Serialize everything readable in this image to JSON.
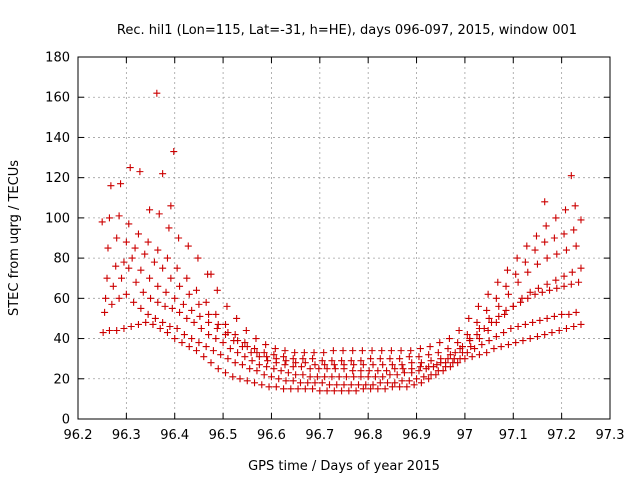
{
  "chart_data": {
    "type": "scatter",
    "title": "Rec. hil1 (Lon=115, Lat=-31, h=HE), days 096-097, 2015, window 001",
    "xlabel": "GPS time / Days of year 2015",
    "ylabel": "STEC from uqrg / TECUs",
    "xlim": [
      96.2,
      97.3
    ],
    "ylim": [
      0,
      180
    ],
    "xticks": [
      96.2,
      96.3,
      96.4,
      96.5,
      96.6,
      96.7,
      96.8,
      96.9,
      97.0,
      97.1,
      97.2,
      97.3
    ],
    "xtick_labels": [
      "96.2",
      "96.3",
      "96.4",
      "96.5",
      "96.6",
      "96.7",
      "96.8",
      "96.9",
      "97",
      "97.1",
      "97.2",
      "97.3"
    ],
    "yticks": [
      0,
      20,
      40,
      60,
      80,
      100,
      120,
      140,
      160,
      180
    ],
    "ytick_labels": [
      "0",
      "20",
      "40",
      "60",
      "80",
      "100",
      "120",
      "140",
      "160",
      "180"
    ],
    "grid": true,
    "legend": "none",
    "marker": "plus",
    "color": "#cc0000",
    "series": [
      {
        "x": [
          96.252,
          96.265,
          96.28,
          96.295,
          96.31,
          96.325,
          96.34,
          96.355,
          96.37,
          96.385,
          96.4,
          96.415,
          96.43,
          96.445,
          96.46,
          96.475,
          96.49,
          96.505,
          96.52,
          96.535,
          96.55,
          96.565,
          96.58,
          96.595,
          96.61,
          96.625,
          96.64,
          96.655,
          96.67,
          96.685,
          96.7,
          96.715,
          96.73,
          96.745,
          96.76,
          96.775,
          96.79,
          96.805,
          96.82,
          96.835,
          96.85,
          96.865,
          96.88,
          96.895,
          96.91,
          96.925,
          96.94,
          96.955,
          96.97,
          96.985,
          97.0,
          97.015,
          97.03,
          97.045,
          97.06,
          97.075,
          97.09,
          97.105,
          97.12,
          97.135,
          97.15,
          97.165,
          97.18,
          97.195,
          97.21,
          97.225,
          97.24
        ],
        "y": [
          43,
          44,
          44,
          45,
          46,
          47,
          48,
          47,
          45,
          43,
          40,
          38,
          36,
          34,
          31,
          28,
          25,
          23,
          21,
          20,
          19,
          18,
          17,
          16,
          16,
          15,
          15,
          15,
          15,
          15,
          14,
          14,
          14,
          14,
          14,
          14,
          15,
          15,
          15,
          15,
          16,
          16,
          16,
          17,
          18,
          20,
          22,
          24,
          26,
          28,
          30,
          31,
          32,
          33,
          35,
          36,
          37,
          38,
          39,
          40,
          41,
          42,
          43,
          44,
          45,
          46,
          47
        ]
      },
      {
        "x": [
          96.255,
          96.27,
          96.285,
          96.3,
          96.315,
          96.33,
          96.345,
          96.36,
          96.375,
          96.39,
          96.405,
          96.42,
          96.435,
          96.45,
          96.465,
          96.48,
          96.495,
          96.51,
          96.525,
          96.54,
          96.555,
          96.57,
          96.585,
          96.6,
          96.615,
          96.63,
          96.645,
          96.66,
          96.675,
          96.69,
          96.705,
          96.72,
          96.735,
          96.75,
          96.765,
          96.78,
          96.795,
          96.81,
          96.825,
          96.84,
          96.855,
          96.87,
          96.885,
          96.9,
          96.915,
          96.93,
          96.945,
          96.96,
          96.975,
          96.99,
          97.005,
          97.02,
          97.035,
          97.05,
          97.065,
          97.08,
          97.095,
          97.11,
          97.125,
          97.14,
          97.155,
          97.17,
          97.185,
          97.2,
          97.215,
          97.23
        ],
        "y": [
          53,
          57,
          60,
          62,
          58,
          55,
          52,
          50,
          48,
          46,
          45,
          42,
          40,
          38,
          36,
          34,
          32,
          30,
          28,
          27,
          25,
          24,
          22,
          21,
          20,
          19,
          19,
          18,
          18,
          18,
          18,
          17,
          17,
          17,
          17,
          17,
          17,
          17,
          18,
          18,
          18,
          19,
          19,
          20,
          21,
          22,
          24,
          26,
          28,
          30,
          33,
          35,
          37,
          39,
          41,
          43,
          45,
          46,
          47,
          48,
          49,
          50,
          51,
          52,
          52,
          53
        ]
      },
      {
        "x": [
          96.257,
          96.273,
          96.29,
          96.305,
          96.32,
          96.335,
          96.35,
          96.365,
          96.38,
          96.395,
          96.41,
          96.425,
          96.44,
          96.455,
          96.47,
          96.485,
          96.5,
          96.515,
          96.53,
          96.545,
          96.56,
          96.575,
          96.59,
          96.605,
          96.62,
          96.635,
          96.65,
          96.665,
          96.68,
          96.695,
          96.71,
          96.725,
          96.74,
          96.755,
          96.77,
          96.785,
          96.8,
          96.815,
          96.83,
          96.845,
          96.86,
          96.875,
          96.89,
          96.905,
          96.92,
          96.935,
          96.95,
          96.965,
          96.98,
          96.995,
          97.01,
          97.025,
          97.04,
          97.055,
          97.07,
          97.085,
          97.1,
          97.115,
          97.13,
          97.145,
          97.16,
          97.175,
          97.19,
          97.205,
          97.22,
          97.235
        ],
        "y": [
          60,
          66,
          70,
          75,
          68,
          63,
          60,
          58,
          56,
          55,
          53,
          50,
          48,
          45,
          42,
          40,
          38,
          35,
          33,
          31,
          29,
          27,
          26,
          25,
          24,
          23,
          22,
          22,
          21,
          21,
          21,
          21,
          21,
          21,
          21,
          21,
          21,
          21,
          21,
          22,
          22,
          23,
          23,
          24,
          25,
          26,
          28,
          30,
          33,
          36,
          39,
          42,
          45,
          48,
          51,
          54,
          56,
          58,
          60,
          62,
          63,
          64,
          65,
          66,
          67,
          68
        ]
      },
      {
        "x": [
          96.26,
          96.278,
          96.295,
          96.312,
          96.33,
          96.348,
          96.365,
          96.382,
          96.4,
          96.418,
          96.435,
          96.452,
          96.47,
          96.488,
          96.505,
          96.522,
          96.54,
          96.558,
          96.575,
          96.592,
          96.61,
          96.628,
          96.645,
          96.662,
          96.68,
          96.698,
          96.715,
          96.732,
          96.75,
          96.768,
          96.785,
          96.802,
          96.82,
          96.838,
          96.855,
          96.872,
          96.89,
          96.908,
          96.925,
          96.942,
          96.96,
          96.978,
          96.995,
          97.012,
          97.03,
          97.048,
          97.065,
          97.082,
          97.1,
          97.118,
          97.135,
          97.152,
          97.17,
          97.188,
          97.205,
          97.222,
          97.24
        ],
        "y": [
          70,
          76,
          78,
          80,
          74,
          70,
          66,
          63,
          60,
          57,
          54,
          51,
          48,
          45,
          42,
          39,
          36,
          33,
          31,
          29,
          28,
          27,
          26,
          26,
          25,
          25,
          25,
          25,
          25,
          24,
          24,
          24,
          24,
          24,
          25,
          25,
          25,
          26,
          26,
          27,
          28,
          30,
          33,
          36,
          40,
          44,
          48,
          52,
          56,
          60,
          63,
          65,
          67,
          69,
          71,
          73,
          75
        ]
      },
      {
        "x": [
          96.262,
          96.28,
          96.3,
          96.318,
          96.338,
          96.358,
          96.375,
          96.392,
          96.41,
          96.43,
          96.45,
          96.47,
          96.49,
          96.51,
          96.53,
          96.55,
          96.57,
          96.59,
          96.61,
          96.63,
          96.65,
          96.67,
          96.69,
          96.71,
          96.73,
          96.75,
          96.77,
          96.79,
          96.81,
          96.83,
          96.85,
          96.87,
          96.89,
          96.91,
          96.93,
          96.95,
          96.97,
          96.99,
          97.01,
          97.03,
          97.05,
          97.07,
          97.09,
          97.11,
          97.13,
          97.15,
          97.17,
          97.19,
          97.21,
          97.23
        ],
        "y": [
          85,
          90,
          88,
          85,
          82,
          78,
          75,
          70,
          66,
          62,
          57,
          52,
          47,
          43,
          39,
          36,
          33,
          31,
          30,
          29,
          28,
          28,
          27,
          27,
          27,
          27,
          27,
          27,
          27,
          27,
          27,
          27,
          28,
          28,
          29,
          30,
          32,
          35,
          40,
          45,
          50,
          56,
          62,
          68,
          73,
          77,
          80,
          82,
          84,
          86
        ]
      },
      {
        "x": [
          96.265,
          96.285,
          96.305,
          96.325,
          96.345,
          96.365,
          96.385,
          96.405,
          96.425,
          96.445,
          96.465,
          96.485,
          96.505,
          96.525,
          96.545,
          96.565,
          96.585,
          96.605,
          96.625,
          96.645,
          96.665,
          96.685,
          96.705,
          96.725,
          96.745,
          96.765,
          96.785,
          96.805,
          96.825,
          96.845,
          96.865,
          96.885,
          96.905,
          96.925,
          96.945,
          96.965,
          96.985,
          97.005,
          97.025,
          97.045,
          97.065,
          97.085,
          97.105,
          97.125,
          97.145,
          97.165,
          97.185,
          97.205,
          97.225
        ],
        "y": [
          100,
          101,
          97,
          92,
          88,
          84,
          80,
          75,
          70,
          64,
          58,
          52,
          47,
          42,
          38,
          35,
          33,
          32,
          31,
          30,
          30,
          30,
          29,
          29,
          29,
          29,
          29,
          30,
          30,
          30,
          30,
          31,
          31,
          32,
          33,
          35,
          38,
          42,
          48,
          54,
          60,
          66,
          72,
          78,
          84,
          88,
          90,
          92,
          94
        ]
      },
      {
        "x": [
          96.25,
          96.268,
          96.288,
          96.308,
          96.328,
          96.348,
          96.368,
          96.388,
          96.408,
          96.428,
          96.448,
          96.468,
          96.488,
          96.508,
          96.528,
          96.548,
          96.568,
          96.588,
          96.608,
          96.628,
          96.648,
          96.668,
          96.688,
          96.708,
          96.728,
          96.748,
          96.768,
          96.788,
          96.808,
          96.828,
          96.848,
          96.868,
          96.888,
          96.908,
          96.928,
          96.948,
          96.968,
          96.988,
          97.008,
          97.028,
          97.048,
          97.068,
          97.088,
          97.108,
          97.128,
          97.148,
          97.168,
          97.188,
          97.208,
          97.228,
          97.24
        ],
        "y": [
          98,
          116,
          117,
          125,
          123,
          104,
          102,
          95,
          90,
          86,
          80,
          72,
          64,
          56,
          50,
          44,
          40,
          37,
          35,
          34,
          33,
          33,
          33,
          33,
          34,
          34,
          34,
          34,
          34,
          34,
          34,
          34,
          34,
          35,
          36,
          38,
          40,
          44,
          50,
          56,
          62,
          68,
          74,
          80,
          86,
          91,
          96,
          100,
          104,
          106,
          99
        ]
      }
    ],
    "outliers": {
      "x": [
        96.363,
        96.398,
        96.375,
        96.392,
        96.475,
        97.22,
        97.165
      ],
      "y": [
        162,
        133,
        122,
        106,
        72,
        121,
        108
      ]
    }
  }
}
